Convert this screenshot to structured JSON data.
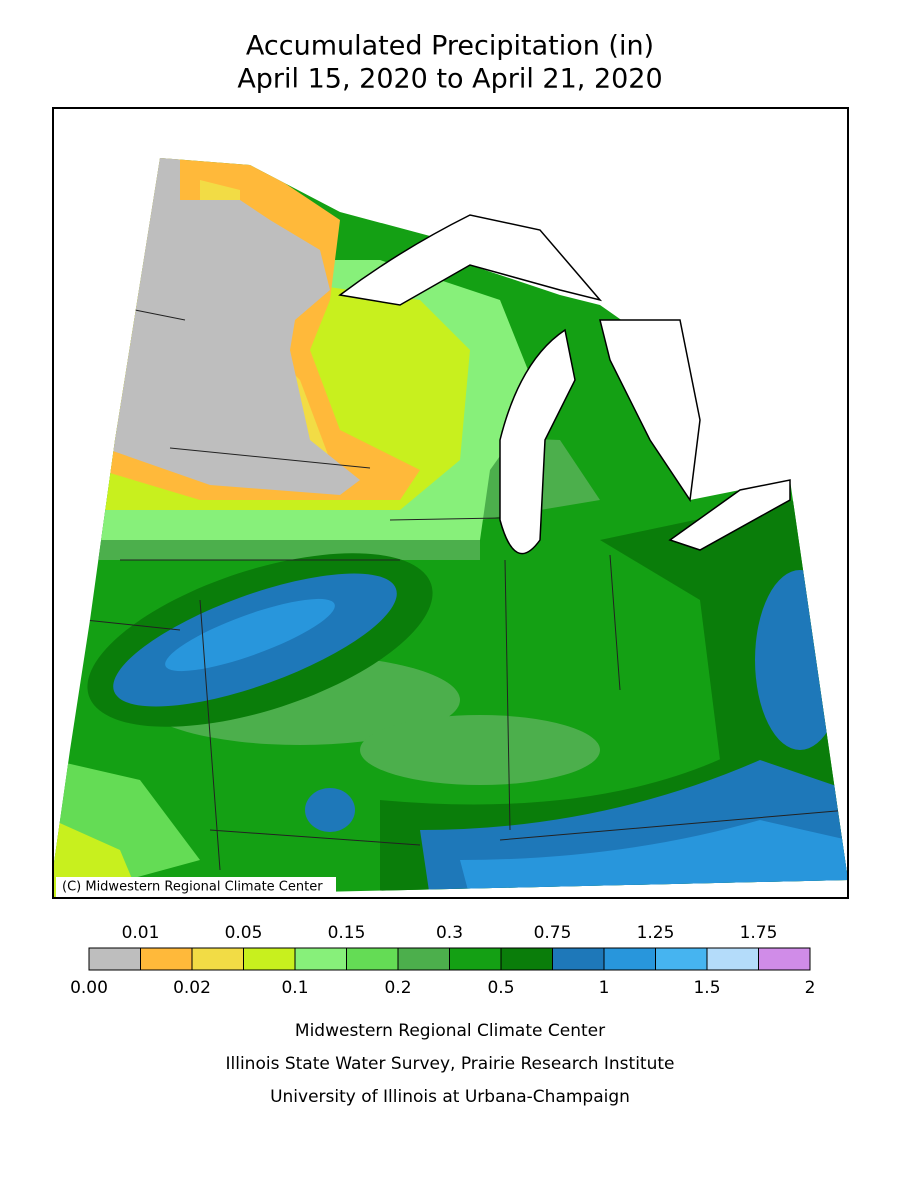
{
  "header": {
    "title": "Accumulated Precipitation (in)",
    "subtitle": "April 15, 2020 to April 21, 2020"
  },
  "map": {
    "copyright": "(C) Midwestern Regional Climate Center"
  },
  "legend": {
    "labels": [
      "0.00",
      "0.01",
      "0.02",
      "0.05",
      "0.1",
      "0.15",
      "0.2",
      "0.3",
      "0.5",
      "0.75",
      "1",
      "1.25",
      "1.5",
      "1.75",
      "2"
    ],
    "colors": [
      "#bebebe",
      "#ffb93a",
      "#f2dc45",
      "#c8f01e",
      "#87f07a",
      "#64dc55",
      "#4caf4c",
      "#14a014",
      "#0a7d0a",
      "#1e78b9",
      "#2896dc",
      "#46b4f0",
      "#b4dcfa",
      "#d08ce8"
    ]
  },
  "footer": {
    "lines": [
      "Midwestern Regional Climate Center",
      "Illinois State Water Survey, Prairie Research Institute",
      "University of Illinois at Urbana-Champaign"
    ]
  }
}
